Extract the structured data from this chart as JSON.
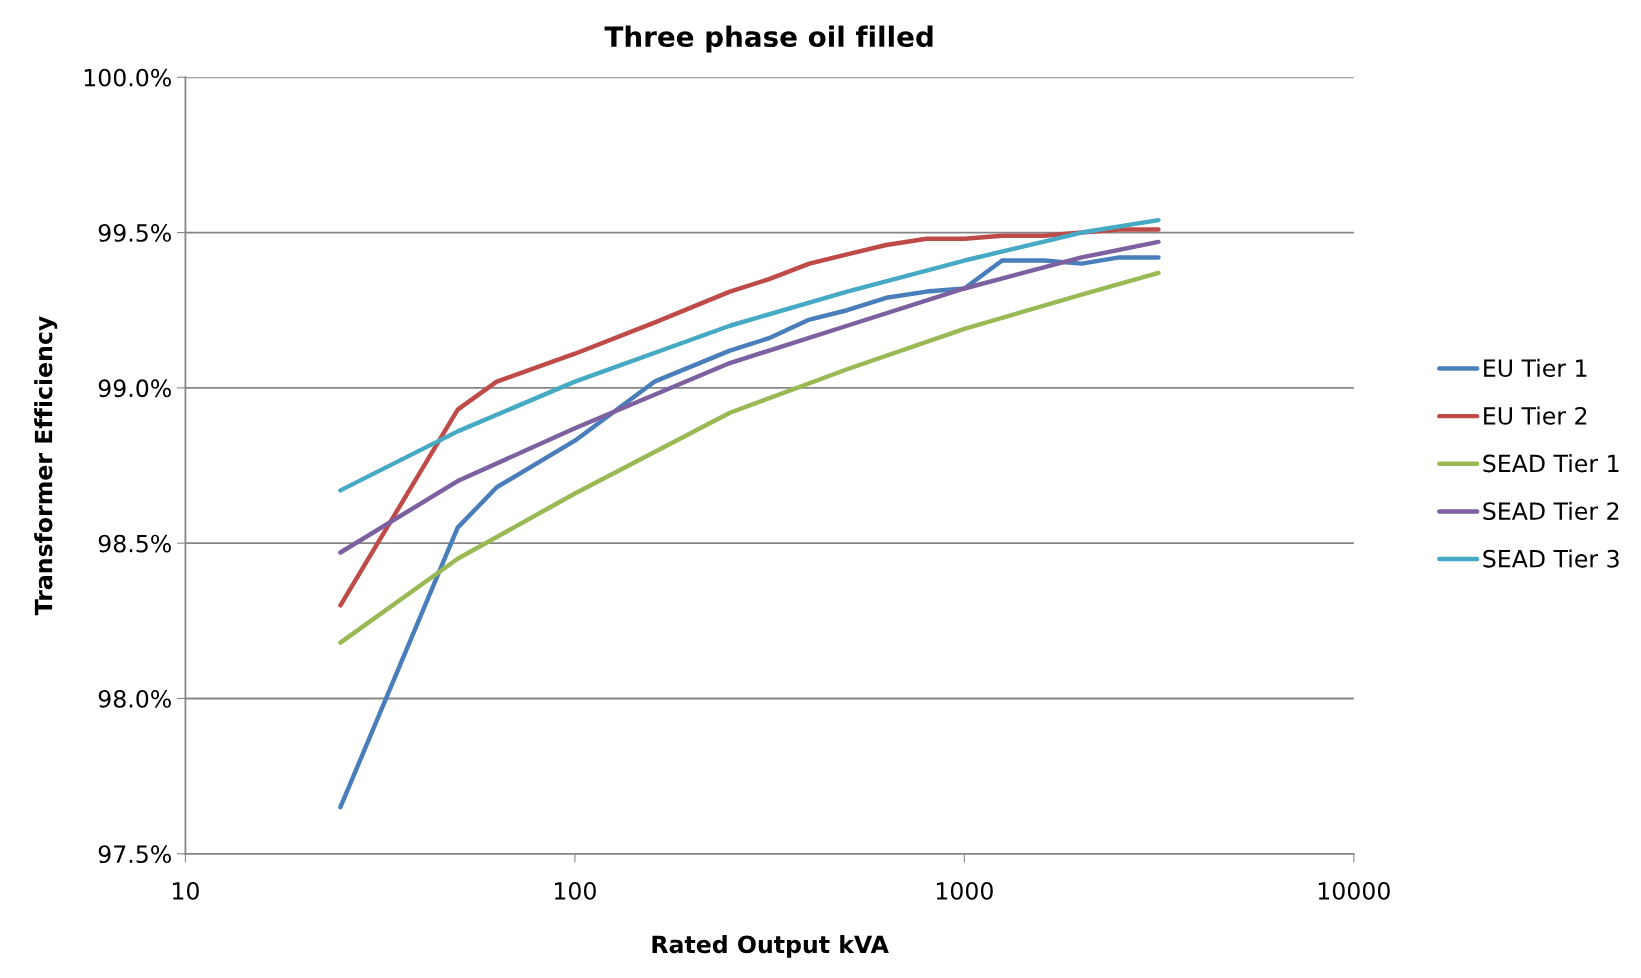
{
  "chart_data": {
    "type": "line",
    "title": "Three phase oil filled",
    "xlabel": "Rated Output kVA",
    "ylabel": "Transformer Efficiency",
    "log": "x",
    "xlim": [
      10,
      10000
    ],
    "xticks": [
      10,
      100,
      1000,
      10000
    ],
    "ylim": [
      97.5,
      100
    ],
    "yticks": [
      {
        "value": 97.5,
        "label": "97.5%"
      },
      {
        "value": 98.0,
        "label": "98.0%"
      },
      {
        "value": 98.5,
        "label": "98.5%"
      },
      {
        "value": 99.0,
        "label": "99.0%"
      },
      {
        "value": 99.5,
        "label": "99.5%"
      },
      {
        "value": 100.0,
        "label": "100.0%"
      }
    ],
    "grid": "y",
    "legend": "right",
    "marker": "none",
    "line_style": "solid",
    "series": [
      {
        "name": "EU Tier 1",
        "color": "#4a7ebb",
        "x": [
          25,
          50,
          63,
          100,
          160,
          250,
          315,
          400,
          500,
          630,
          800,
          1000,
          1250,
          1600,
          2000,
          2500,
          3150
        ],
        "values": [
          97.65,
          98.55,
          98.68,
          98.83,
          99.02,
          99.12,
          99.16,
          99.22,
          99.25,
          99.29,
          99.31,
          99.32,
          99.41,
          99.41,
          99.4,
          99.42,
          99.42
        ]
      },
      {
        "name": "EU Tier 2",
        "color": "#be4b48",
        "x": [
          25,
          50,
          63,
          100,
          160,
          250,
          315,
          400,
          500,
          630,
          800,
          1000,
          1250,
          1600,
          2000,
          2500,
          3150
        ],
        "values": [
          98.3,
          98.93,
          99.02,
          99.11,
          99.21,
          99.31,
          99.35,
          99.4,
          99.43,
          99.46,
          99.48,
          99.48,
          99.49,
          99.49,
          99.5,
          99.51,
          99.51
        ]
      },
      {
        "name": "SEAD Tier 1",
        "color": "#98b954",
        "x": [
          25,
          50,
          100,
          250,
          500,
          1000,
          2000,
          3150
        ],
        "values": [
          98.18,
          98.45,
          98.66,
          98.92,
          99.06,
          99.19,
          99.3,
          99.37
        ]
      },
      {
        "name": "SEAD Tier 2",
        "color": "#7d60a0",
        "x": [
          25,
          50,
          100,
          250,
          500,
          1000,
          2000,
          3150
        ],
        "values": [
          98.47,
          98.7,
          98.87,
          99.08,
          99.2,
          99.32,
          99.42,
          99.47
        ]
      },
      {
        "name": "SEAD Tier 3",
        "color": "#46aac5",
        "x": [
          25,
          50,
          100,
          250,
          500,
          1000,
          2000,
          3150
        ],
        "values": [
          98.67,
          98.86,
          99.02,
          99.2,
          99.31,
          99.41,
          99.5,
          99.54
        ]
      }
    ]
  }
}
